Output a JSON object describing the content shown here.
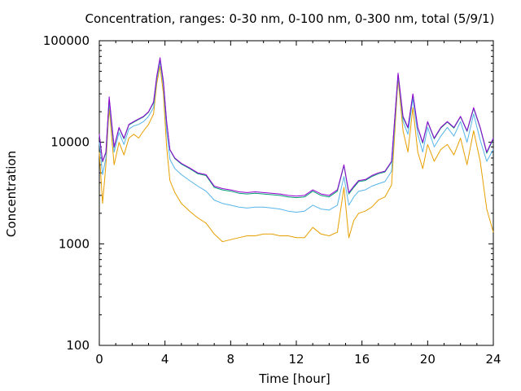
{
  "chart_data": {
    "type": "line",
    "title": "Concentration, ranges: 0-30 nm, 0-100 nm, 0-300 nm, total (5/9/1)",
    "xlabel": "Time [hour]",
    "ylabel": "Concentration",
    "xlim": [
      0,
      24
    ],
    "ylim": [
      100,
      100000
    ],
    "yscale": "log",
    "xticks": [
      "0",
      "4",
      "8",
      "12",
      "16",
      "20",
      "24"
    ],
    "yticks": [
      "100",
      "1000",
      "10000",
      "100000"
    ],
    "grid": false,
    "legend": "none",
    "x": [
      0,
      0.2,
      0.4,
      0.6,
      0.9,
      1.2,
      1.5,
      1.8,
      2.1,
      2.4,
      2.7,
      3.0,
      3.3,
      3.5,
      3.7,
      3.9,
      4.1,
      4.3,
      4.6,
      5.0,
      5.5,
      6.0,
      6.5,
      7.0,
      7.5,
      8.0,
      8.5,
      9.0,
      9.5,
      10.0,
      10.5,
      11.0,
      11.5,
      12.0,
      12.5,
      13.0,
      13.5,
      14.0,
      14.5,
      14.9,
      15.2,
      15.5,
      15.8,
      16.2,
      16.6,
      17.0,
      17.4,
      17.8,
      18.2,
      18.5,
      18.8,
      19.1,
      19.4,
      19.7,
      20.0,
      20.4,
      20.8,
      21.2,
      21.6,
      22.0,
      22.4,
      22.8,
      23.2,
      23.6,
      24.0
    ],
    "series": [
      {
        "color": "#9400d3",
        "values": [
          12000,
          6500,
          8000,
          28000,
          9000,
          14000,
          11000,
          15000,
          16000,
          17000,
          18000,
          20000,
          25000,
          45000,
          68000,
          40000,
          16000,
          8500,
          7000,
          6200,
          5600,
          5000,
          4800,
          3700,
          3500,
          3400,
          3250,
          3200,
          3250,
          3200,
          3150,
          3100,
          3000,
          2950,
          3000,
          3400,
          3100,
          3000,
          3400,
          6000,
          3200,
          3700,
          4200,
          4300,
          4700,
          5000,
          5200,
          6500,
          48000,
          18000,
          14000,
          30000,
          14000,
          10000,
          16000,
          11000,
          14000,
          16000,
          14000,
          18000,
          13000,
          22000,
          14000,
          8000,
          11000
        ]
      },
      {
        "color": "#009e73",
        "values": [
          11800,
          6400,
          7900,
          27000,
          8900,
          13800,
          10800,
          14800,
          15800,
          16800,
          17800,
          19800,
          24500,
          44000,
          67000,
          39000,
          15800,
          8400,
          6900,
          6100,
          5500,
          4900,
          4700,
          3600,
          3400,
          3300,
          3150,
          3100,
          3150,
          3100,
          3050,
          3000,
          2900,
          2850,
          2900,
          3300,
          3000,
          2900,
          3300,
          5900,
          3100,
          3600,
          4100,
          4200,
          4600,
          4900,
          5100,
          6400,
          47000,
          17500,
          13800,
          29500,
          13800,
          9800,
          15800,
          10800,
          13800,
          15800,
          13800,
          17800,
          12800,
          21500,
          13800,
          7800,
          10800
        ]
      },
      {
        "color": "#56b4e9",
        "values": [
          10000,
          4800,
          7000,
          25000,
          8000,
          12500,
          9500,
          13500,
          14500,
          15000,
          16000,
          18000,
          22000,
          42000,
          62000,
          36000,
          13000,
          6800,
          5500,
          4800,
          4200,
          3700,
          3300,
          2700,
          2500,
          2400,
          2300,
          2250,
          2300,
          2300,
          2250,
          2200,
          2100,
          2050,
          2100,
          2400,
          2200,
          2150,
          2400,
          4600,
          2400,
          2900,
          3300,
          3400,
          3700,
          3900,
          4100,
          5200,
          45000,
          16000,
          12000,
          27000,
          12000,
          8000,
          14000,
          9000,
          11500,
          14000,
          11500,
          16000,
          10000,
          19000,
          10500,
          6500,
          8500
        ]
      },
      {
        "color": "#e69f00",
        "values": [
          8000,
          2500,
          6000,
          22000,
          6000,
          10000,
          7500,
          11000,
          12000,
          11000,
          13000,
          15000,
          19000,
          38000,
          56000,
          30000,
          9000,
          4200,
          3200,
          2500,
          2100,
          1800,
          1600,
          1250,
          1050,
          1100,
          1150,
          1200,
          1200,
          1250,
          1250,
          1200,
          1200,
          1150,
          1150,
          1450,
          1250,
          1200,
          1300,
          3600,
          1150,
          1700,
          2000,
          2100,
          2300,
          2700,
          2900,
          3800,
          42000,
          13000,
          8000,
          22000,
          8000,
          5500,
          9500,
          6500,
          8500,
          9500,
          7500,
          11000,
          6000,
          13000,
          6500,
          2200,
          1300
        ]
      }
    ]
  }
}
